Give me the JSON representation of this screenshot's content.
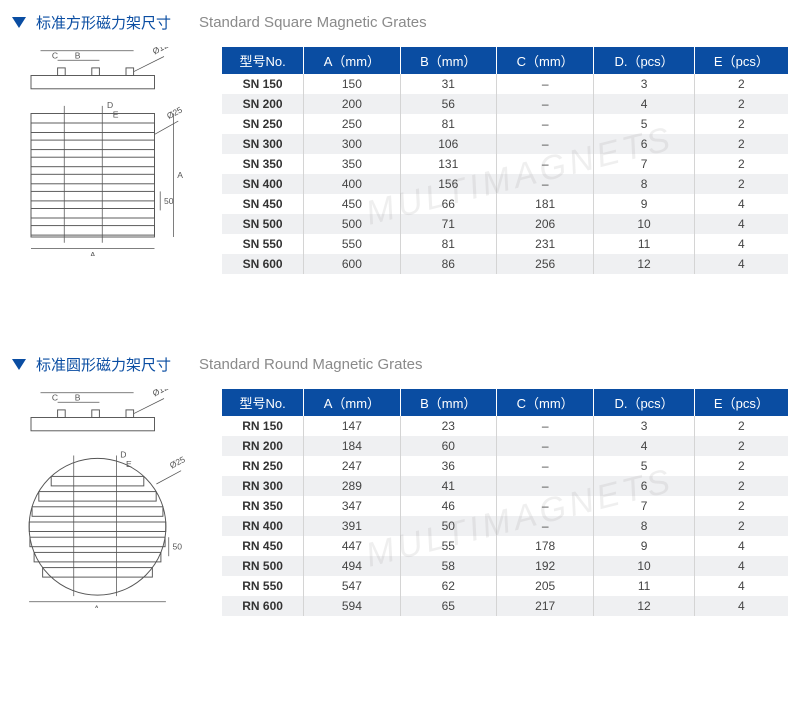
{
  "watermark_text": "MULTIMAGNETS",
  "sections": [
    {
      "title_zh": "标准方形磁力架尺寸",
      "title_en": "Standard Square Magnetic Grates",
      "diagram_type": "square",
      "columns": [
        "型号No.",
        "A（mm）",
        "B（mm）",
        "C（mm）",
        "D.（pcs）",
        "E（pcs）"
      ],
      "rows": [
        [
          "SN 150",
          "150",
          "31",
          "–",
          "3",
          "2"
        ],
        [
          "SN 200",
          "200",
          "56",
          "–",
          "4",
          "2"
        ],
        [
          "SN 250",
          "250",
          "81",
          "–",
          "5",
          "2"
        ],
        [
          "SN 300",
          "300",
          "106",
          "–",
          "6",
          "2"
        ],
        [
          "SN 350",
          "350",
          "131",
          "–",
          "7",
          "2"
        ],
        [
          "SN 400",
          "400",
          "156",
          "–",
          "8",
          "2"
        ],
        [
          "SN 450",
          "450",
          "66",
          "181",
          "9",
          "4"
        ],
        [
          "SN 500",
          "500",
          "71",
          "206",
          "10",
          "4"
        ],
        [
          "SN 550",
          "550",
          "81",
          "231",
          "11",
          "4"
        ],
        [
          "SN 600",
          "600",
          "86",
          "256",
          "12",
          "4"
        ]
      ]
    },
    {
      "title_zh": "标准圆形磁力架尺寸",
      "title_en": "Standard Round Magnetic Grates",
      "diagram_type": "round",
      "columns": [
        "型号No.",
        "A（mm）",
        "B（mm）",
        "C（mm）",
        "D.（pcs）",
        "E（pcs）"
      ],
      "rows": [
        [
          "RN 150",
          "147",
          "23",
          "–",
          "3",
          "2"
        ],
        [
          "RN 200",
          "184",
          "60",
          "–",
          "4",
          "2"
        ],
        [
          "RN 250",
          "247",
          "36",
          "–",
          "5",
          "2"
        ],
        [
          "RN 300",
          "289",
          "41",
          "–",
          "6",
          "2"
        ],
        [
          "RN 350",
          "347",
          "46",
          "–",
          "7",
          "2"
        ],
        [
          "RN 400",
          "391",
          "50",
          "–",
          "8",
          "2"
        ],
        [
          "RN 450",
          "447",
          "55",
          "178",
          "9",
          "4"
        ],
        [
          "RN 500",
          "494",
          "58",
          "192",
          "10",
          "4"
        ],
        [
          "RN 550",
          "547",
          "62",
          "205",
          "11",
          "4"
        ],
        [
          "RN 600",
          "594",
          "65",
          "217",
          "12",
          "4"
        ]
      ]
    }
  ],
  "styles": {
    "header_bg": "#0a4da2",
    "header_fg": "#ffffff",
    "row_odd_bg": "#ffffff",
    "row_even_bg": "#eff0f2",
    "title_color": "#0a4da2",
    "subtitle_color": "#8a8a8a",
    "cell_border": "#d4d4d4",
    "font_size_title": 15,
    "font_size_table": 12
  }
}
